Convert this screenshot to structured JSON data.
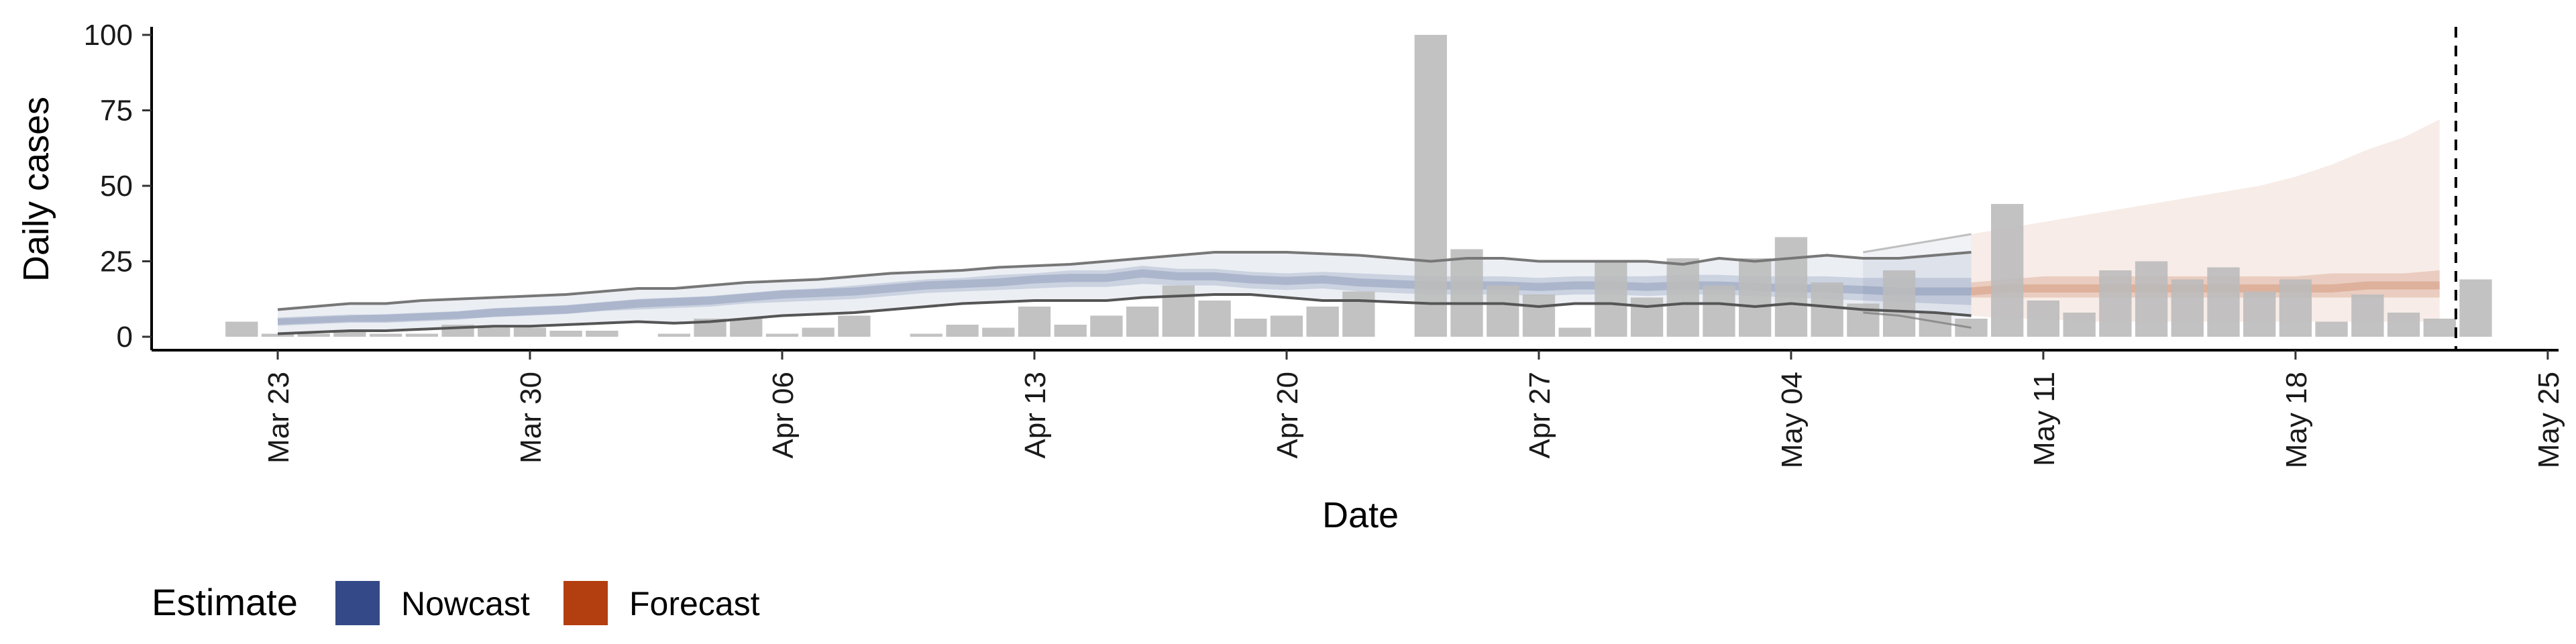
{
  "chart_data": {
    "type": "bar",
    "xlabel": "Date",
    "ylabel": "Daily cases",
    "ylim": [
      0,
      100
    ],
    "yticks": [
      "0",
      "25",
      "50",
      "75",
      "100"
    ],
    "ytick_values": [
      0,
      25,
      50,
      75,
      100
    ],
    "xticks": [
      {
        "label": "Mar 23",
        "day": 0
      },
      {
        "label": "Mar 30",
        "day": 7
      },
      {
        "label": "Apr 06",
        "day": 14
      },
      {
        "label": "Apr 13",
        "day": 21
      },
      {
        "label": "Apr 20",
        "day": 28
      },
      {
        "label": "Apr 27",
        "day": 35
      },
      {
        "label": "May 04",
        "day": 42
      },
      {
        "label": "May 11",
        "day": 49
      },
      {
        "label": "May 18",
        "day": 56
      },
      {
        "label": "May 25",
        "day": 63
      }
    ],
    "x_domain_days": [
      -3.5,
      63.3
    ],
    "start_date": "Mar 22",
    "reference_line_day": 60,
    "reported_cases": [
      5,
      1,
      1,
      2,
      1,
      1,
      4,
      3,
      3,
      2,
      2,
      0,
      1,
      6,
      6,
      1,
      3,
      7,
      0,
      1,
      4,
      3,
      10,
      4,
      7,
      10,
      17,
      12,
      6,
      7,
      10,
      15,
      0,
      100,
      29,
      17,
      14,
      3,
      25,
      13,
      26,
      17,
      26,
      33,
      18,
      11,
      22,
      8,
      6,
      44,
      12,
      8,
      22,
      25,
      19,
      23,
      15,
      19,
      5,
      14,
      8,
      6,
      19
    ],
    "nowcast": {
      "days": [
        0,
        1,
        2,
        3,
        4,
        5,
        6,
        7,
        8,
        9,
        10,
        11,
        12,
        13,
        14,
        15,
        16,
        17,
        18,
        19,
        20,
        21,
        22,
        23,
        24,
        25,
        26,
        27,
        28,
        29,
        30,
        31,
        32,
        33,
        34,
        35,
        36,
        37,
        38,
        39,
        40,
        41,
        42,
        43,
        44,
        45,
        46,
        47
      ],
      "median": [
        5,
        5.5,
        6,
        6,
        6.5,
        7,
        8,
        8.5,
        9,
        10,
        11,
        11.5,
        12,
        13,
        14,
        14.5,
        15,
        16,
        17,
        17.5,
        18,
        19,
        19.5,
        19.5,
        21,
        20,
        20,
        19,
        18.5,
        19,
        18,
        17.5,
        17,
        17,
        17,
        16.5,
        17,
        17,
        16.5,
        17,
        17,
        16.5,
        16,
        16,
        15.5,
        15,
        15,
        15
      ],
      "lower50": [
        4,
        4.5,
        5,
        5,
        5.5,
        6,
        6.5,
        7,
        7.5,
        8.5,
        9,
        9.5,
        10,
        11,
        11.5,
        12,
        12.5,
        13.5,
        14.5,
        15,
        15.5,
        16,
        16.5,
        16.5,
        17.5,
        17,
        17,
        16,
        15.5,
        16,
        15,
        14.5,
        14,
        14,
        14,
        13.5,
        14,
        14,
        13.5,
        14,
        14,
        13.5,
        13,
        12.5,
        12,
        11.5,
        11,
        10.5
      ],
      "upper50": [
        6,
        6.5,
        7,
        7.5,
        8,
        8.5,
        9.5,
        10,
        10.5,
        11.5,
        12.5,
        13,
        13.5,
        14.5,
        15.5,
        16,
        17,
        18,
        19,
        19.5,
        20.5,
        21,
        22,
        22,
        23.5,
        22.5,
        22.5,
        21.5,
        21,
        21.5,
        21,
        20.5,
        20,
        20,
        20,
        19.5,
        20,
        20,
        20,
        20.5,
        20.5,
        20,
        20,
        20,
        19.5,
        19.5,
        19.5,
        19.5
      ],
      "lower90": [
        1,
        1.5,
        2,
        2,
        2.5,
        3,
        3.5,
        3.5,
        4,
        4.5,
        5,
        4.5,
        5,
        6,
        7,
        7.5,
        8,
        9,
        10,
        11,
        11.5,
        12,
        12,
        12,
        13,
        13.5,
        14,
        14,
        13,
        12,
        12,
        11.5,
        11,
        11,
        11,
        10,
        11,
        11,
        10,
        11,
        11,
        10,
        11,
        10,
        9,
        8.5,
        8,
        7
      ],
      "upper90": [
        9,
        10,
        11,
        11,
        12,
        12.5,
        13,
        13.5,
        14,
        15,
        16,
        16,
        17,
        18,
        18.5,
        19,
        20,
        21,
        21.5,
        22,
        23,
        23.5,
        24,
        25,
        26,
        27,
        28,
        28,
        28,
        27.5,
        27,
        26,
        25,
        26,
        26,
        25,
        25,
        25,
        25,
        24,
        26,
        25,
        26,
        27,
        26,
        26,
        27,
        28
      ]
    },
    "nowcast_tail": {
      "days": [
        44,
        45,
        46,
        47
      ],
      "upper": [
        28,
        30,
        32,
        34
      ],
      "lower": [
        8,
        7,
        5,
        3
      ]
    },
    "forecast": {
      "days": [
        47,
        48,
        49,
        50,
        51,
        52,
        53,
        54,
        55,
        56,
        57,
        58,
        59,
        60
      ],
      "median": [
        15,
        16,
        16,
        16,
        16,
        16,
        16,
        16,
        16,
        16,
        16,
        17,
        17,
        17
      ],
      "lower50": [
        13,
        13,
        13,
        13,
        13,
        13,
        13,
        13,
        13,
        13,
        13,
        13,
        13,
        13
      ],
      "upper50": [
        18,
        19,
        20,
        20,
        20,
        20,
        20,
        20,
        20,
        20,
        21,
        21,
        21,
        22
      ],
      "lower90": [
        7,
        6,
        6,
        5,
        5,
        5,
        5,
        5,
        5,
        5,
        5,
        5,
        5,
        5
      ],
      "upper90": [
        34,
        36,
        38,
        40,
        42,
        44,
        46,
        48,
        50,
        53,
        57,
        62,
        66,
        72
      ]
    },
    "colors": {
      "bars": "#bbbbbb",
      "nowcast": "#3c5488",
      "forecast": "#b0400f",
      "lines": "#777777",
      "axis": "#000000"
    },
    "legend": {
      "title": "Estimate",
      "items": [
        {
          "label": "Nowcast",
          "color": "#344a88"
        },
        {
          "label": "Forecast",
          "color": "#b33e10"
        }
      ]
    }
  }
}
